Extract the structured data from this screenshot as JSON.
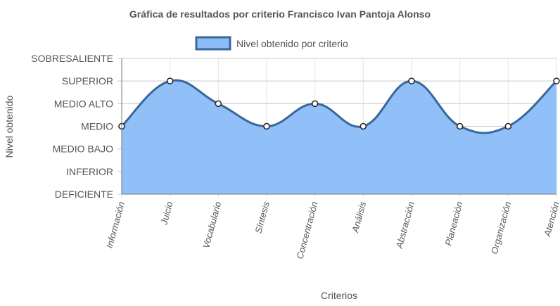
{
  "colors": {
    "fill": "#8bbcf8",
    "line": "#3a6799",
    "point_fill": "#ffffff",
    "point_stroke": "#222222",
    "grid_x": "#e3e3e3",
    "grid_y": "#c8c8c8",
    "axis": "#777777",
    "text": "#555555"
  },
  "chart_data": {
    "type": "area",
    "title": "Gráfica de resultados por criterio Francisco Ivan Pantoja Alonso",
    "xlabel": "Criterios",
    "ylabel": "Nivel obtenido",
    "categories": [
      "Información",
      "Juicio",
      "Vocabulario",
      "Síntesis",
      "Concentración",
      "Análisis",
      "Abstracción",
      "Planeación",
      "Organización",
      "Atención"
    ],
    "y_levels": [
      "DEFICIENTE",
      "INFERIOR",
      "MEDIO BAJO",
      "MEDIO",
      "MEDIO ALTO",
      "SUPERIOR",
      "SOBRESALIENTE"
    ],
    "ylim": [
      0,
      6
    ],
    "grid": true,
    "legend_position": "top",
    "series": [
      {
        "name": "Nivel obtenido por criterio",
        "values": [
          3,
          5,
          4,
          3,
          4,
          3,
          5,
          3,
          3,
          5
        ]
      }
    ]
  }
}
